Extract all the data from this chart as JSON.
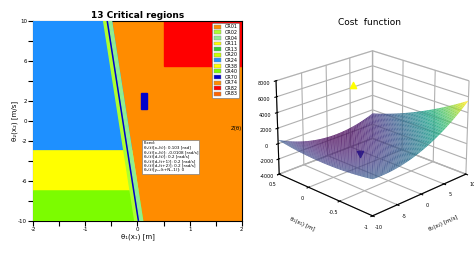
{
  "title_left": "13 Critical regions",
  "title_right": "Cost  function",
  "xlim_left": [
    -2,
    2
  ],
  "ylim_left": [
    -10,
    10
  ],
  "xlabel_left": "θ₁(x₁) [m]",
  "ylabel_left": "θ₂(x₂) [m/s]",
  "zlabel_right": "Z(θ)",
  "xlabel_right": "θ₂(x₂) [m/s]",
  "ylabel_right": "θ₁(x₁) [m]",
  "legend_entries": [
    "CR01",
    "CR02",
    "CR04",
    "CR11",
    "CR13",
    "CR20",
    "CR24",
    "CR38",
    "CR40",
    "CR70",
    "CR74",
    "CR82",
    "CR83"
  ],
  "legend_colors": [
    "#FF8C00",
    "#ADFF2F",
    "#90EE90",
    "#FFFF00",
    "#32CD32",
    "#CCFF00",
    "#1E90FF",
    "#FFFF00",
    "#7CFC00",
    "#0000CD",
    "#FF8C00",
    "#FF0000",
    "#FF6600"
  ],
  "fixed_text_lines": [
    "Fixed:",
    "θ₃(t)[x₃(t)]: 0.103 [rad]",
    "θ₄(t)[x₄(t)]: -0.0108 [rad/s]",
    "θ₅(t)[d₁(t)]: 0.2 [rad/s]",
    "θ₆(t)[d₂(t+1)]: 0.2 [rad/s]",
    "θ₇(t)[d₃(t+2)]: 0.2 [rad/s]",
    "θ₈(t)[yₚ₀(t+Nᵧ-1)]: 0"
  ]
}
